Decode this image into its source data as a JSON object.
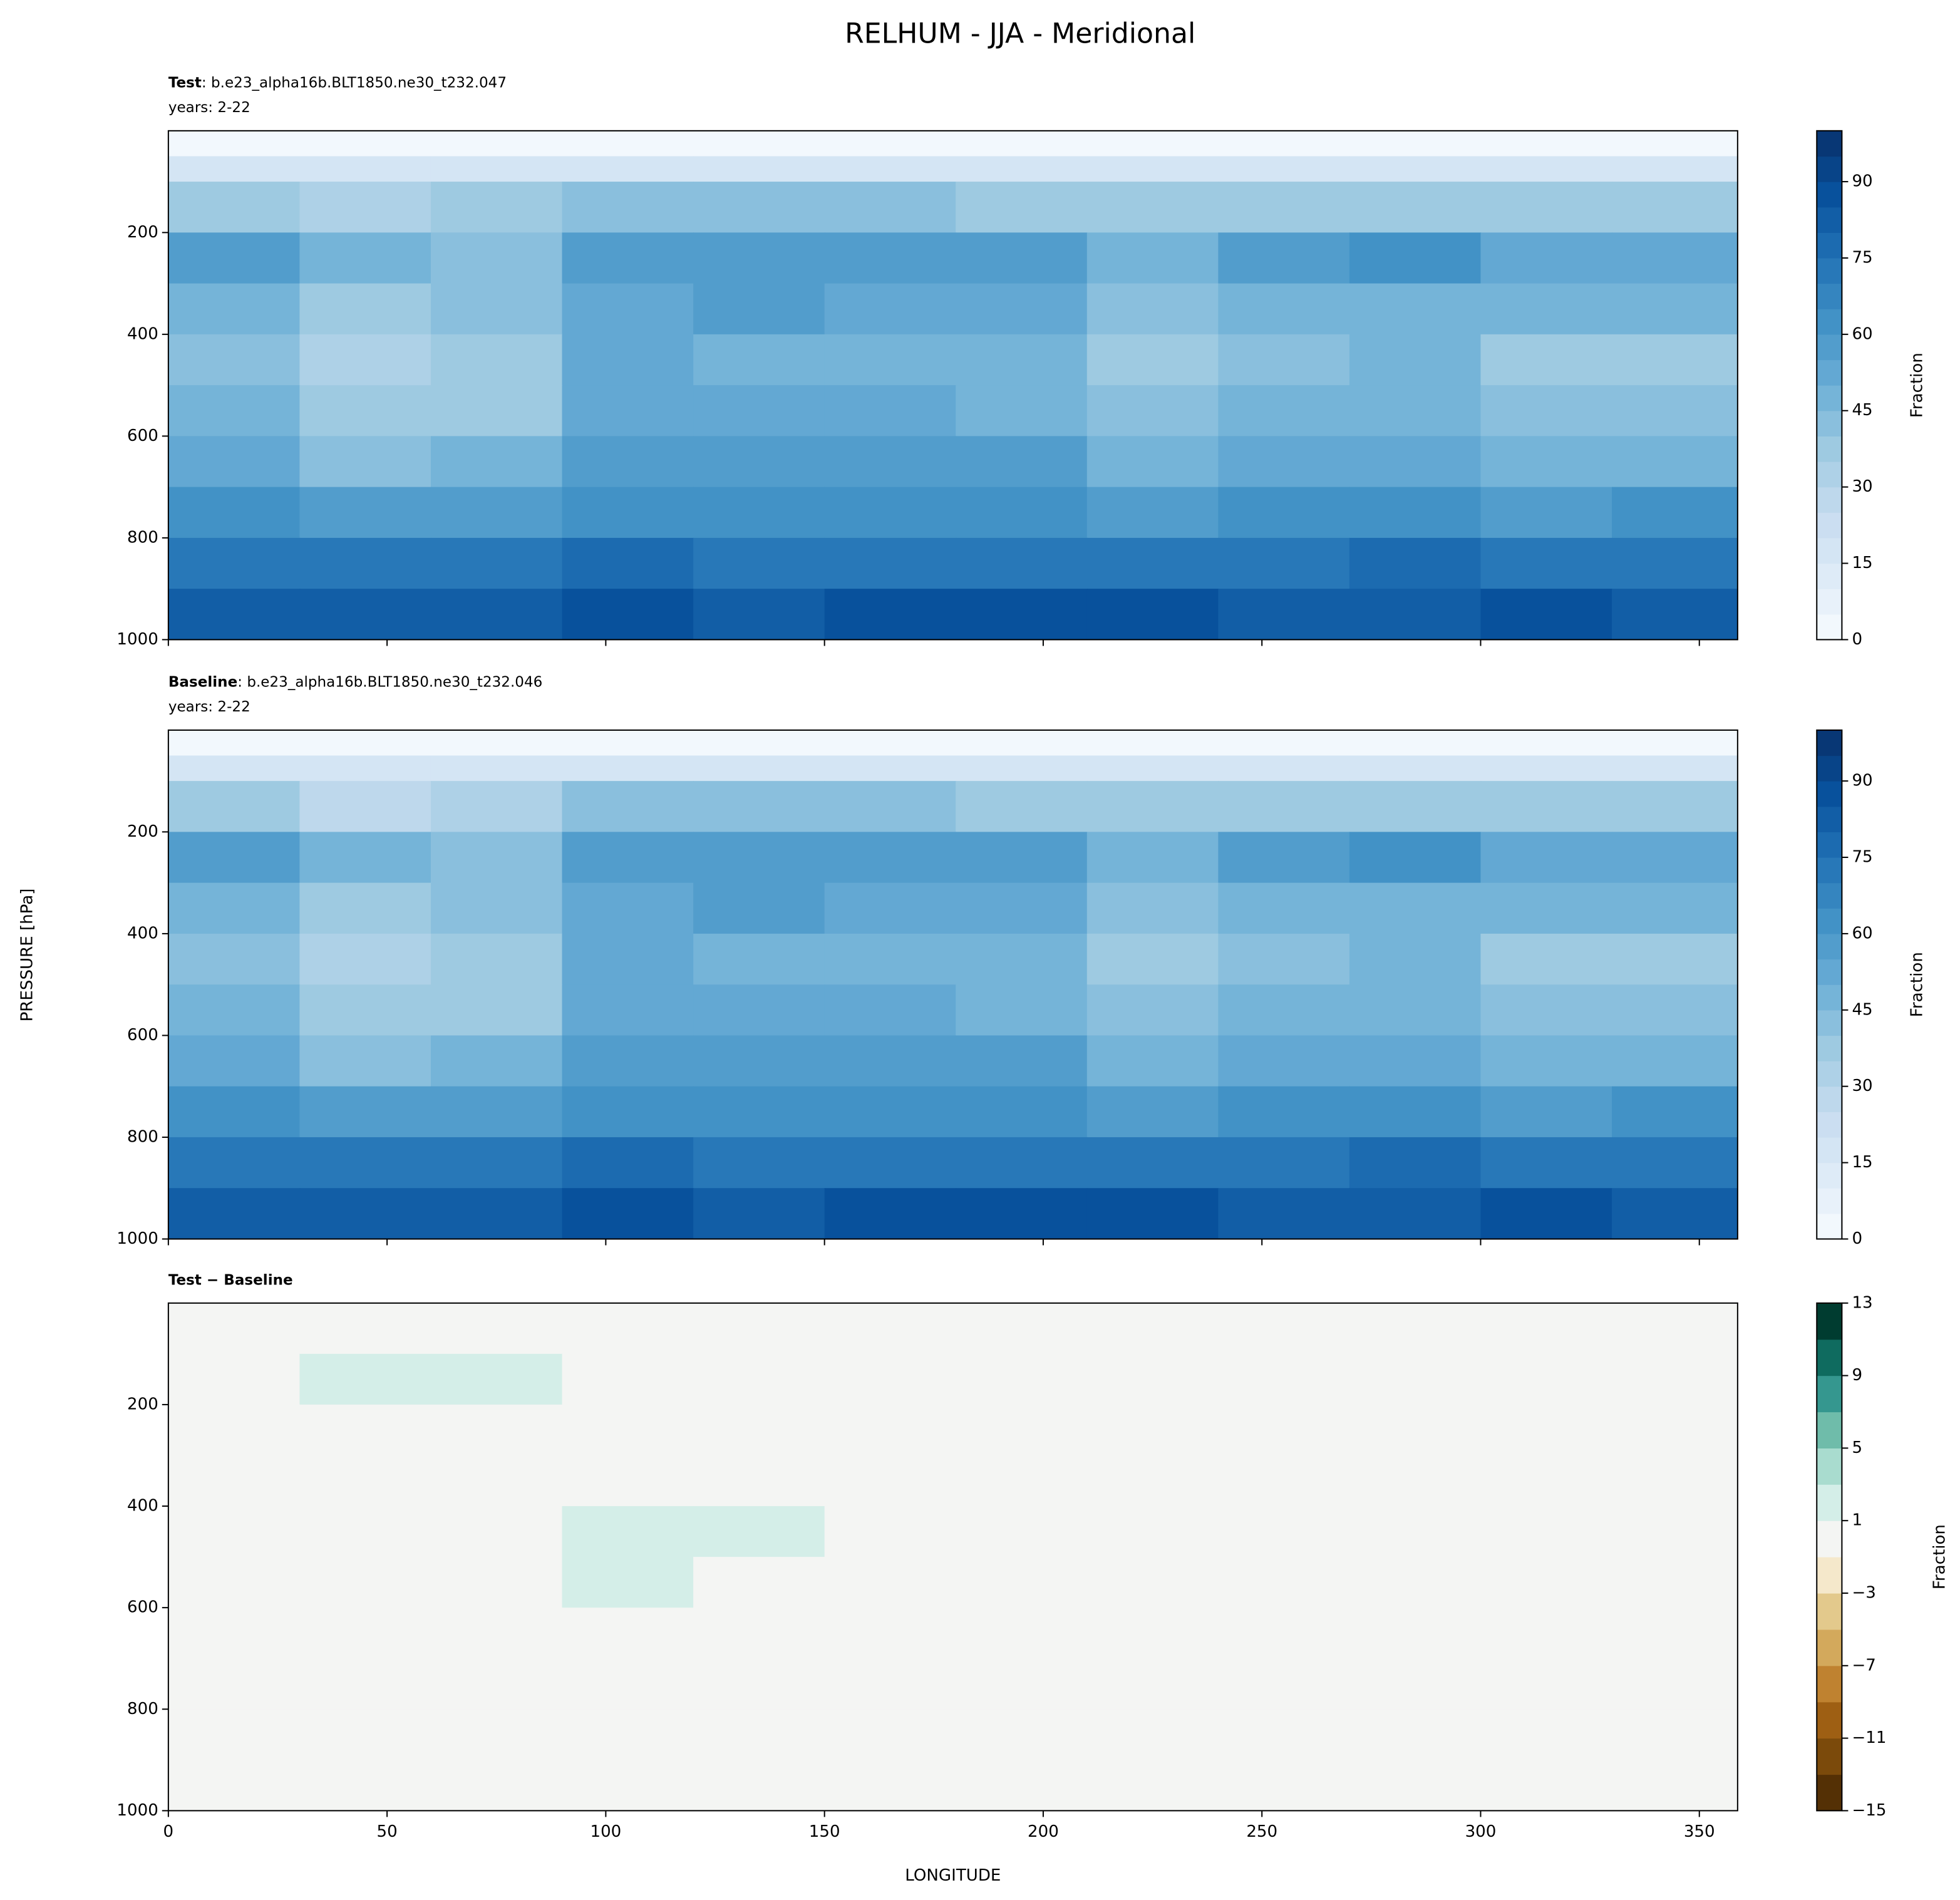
{
  "title": "RELHUM - JJA - Meridional",
  "ylabel": "PRESSURE [hPa]",
  "chart_data": [
    {
      "type": "contourf",
      "title_bold": "Test",
      "title": ": b.e23_alpha16b.BLT1850.ne30_t232.047",
      "subtitle": "years: 2-22",
      "x_edges": [
        0,
        30,
        60,
        90,
        120,
        150,
        180,
        210,
        240,
        270,
        300,
        330,
        360
      ],
      "y_edges": [
        0,
        50,
        100,
        200,
        300,
        400,
        500,
        600,
        700,
        800,
        900,
        1000
      ],
      "z": [
        [
          3,
          3,
          3,
          3,
          3,
          3,
          3,
          3,
          3,
          3,
          3,
          3
        ],
        [
          15,
          15,
          15,
          15,
          15,
          15,
          15,
          15,
          15,
          15,
          15,
          15
        ],
        [
          35,
          30,
          35,
          42,
          42,
          40,
          38,
          35,
          35,
          38,
          35,
          35
        ],
        [
          55,
          45,
          42,
          55,
          58,
          58,
          55,
          45,
          55,
          60,
          50,
          50
        ],
        [
          45,
          35,
          40,
          52,
          55,
          52,
          50,
          42,
          45,
          48,
          45,
          45
        ],
        [
          40,
          30,
          35,
          52,
          48,
          48,
          45,
          35,
          40,
          45,
          35,
          38
        ],
        [
          45,
          35,
          38,
          52,
          50,
          52,
          48,
          40,
          45,
          48,
          40,
          42
        ],
        [
          50,
          42,
          45,
          55,
          55,
          55,
          55,
          48,
          50,
          50,
          45,
          48
        ],
        [
          62,
          58,
          58,
          62,
          62,
          60,
          60,
          58,
          60,
          62,
          58,
          60
        ],
        [
          72,
          70,
          72,
          75,
          72,
          72,
          72,
          70,
          72,
          75,
          72,
          72
        ],
        [
          82,
          82,
          80,
          85,
          82,
          88,
          88,
          85,
          82,
          80,
          85,
          82
        ]
      ],
      "xlim": [
        0,
        358.75
      ],
      "ylim": [
        1000,
        0
      ],
      "yticks": [
        200,
        400,
        600,
        800,
        1000
      ],
      "xticks": [
        0,
        50,
        100,
        150,
        200,
        250,
        300,
        350
      ],
      "colorbar": {
        "label": "Fraction",
        "lim": [
          0,
          100
        ],
        "ticks": [
          0,
          15,
          30,
          45,
          60,
          75,
          90
        ],
        "levels": [
          0,
          5,
          10,
          15,
          20,
          25,
          30,
          35,
          40,
          45,
          50,
          55,
          60,
          65,
          70,
          75,
          80,
          85,
          90,
          95,
          100
        ],
        "cmap": [
          "#f7fbff",
          "#deebf7",
          "#c6dbef",
          "#9ecae1",
          "#6baed6",
          "#4292c6",
          "#2171b5",
          "#08519c",
          "#08306b"
        ]
      }
    },
    {
      "type": "contourf",
      "title_bold": "Baseline",
      "title": ": b.e23_alpha16b.BLT1850.ne30_t232.046",
      "subtitle": "years: 2-22",
      "x_edges": [
        0,
        30,
        60,
        90,
        120,
        150,
        180,
        210,
        240,
        270,
        300,
        330,
        360
      ],
      "y_edges": [
        0,
        50,
        100,
        200,
        300,
        400,
        500,
        600,
        700,
        800,
        900,
        1000
      ],
      "z": [
        [
          3,
          3,
          3,
          3,
          3,
          3,
          3,
          3,
          3,
          3,
          3,
          3
        ],
        [
          15,
          15,
          15,
          15,
          15,
          15,
          15,
          15,
          15,
          15,
          15,
          15
        ],
        [
          35,
          28,
          34,
          42,
          42,
          40,
          38,
          35,
          35,
          38,
          35,
          35
        ],
        [
          55,
          45,
          42,
          55,
          58,
          58,
          55,
          45,
          55,
          60,
          50,
          50
        ],
        [
          45,
          35,
          40,
          52,
          55,
          53,
          50,
          43,
          45,
          48,
          45,
          45
        ],
        [
          40,
          30,
          35,
          50,
          47,
          49,
          45,
          35,
          40,
          45,
          35,
          38
        ],
        [
          45,
          35,
          38,
          50,
          50,
          52,
          48,
          40,
          45,
          48,
          40,
          42
        ],
        [
          50,
          42,
          45,
          55,
          55,
          55,
          55,
          48,
          50,
          50,
          45,
          48
        ],
        [
          62,
          58,
          58,
          62,
          62,
          60,
          60,
          58,
          60,
          62,
          58,
          60
        ],
        [
          72,
          70,
          72,
          75,
          72,
          72,
          72,
          70,
          72,
          75,
          72,
          72
        ],
        [
          82,
          82,
          80,
          85,
          82,
          88,
          88,
          85,
          82,
          80,
          85,
          82
        ]
      ],
      "xlim": [
        0,
        358.75
      ],
      "ylim": [
        1000,
        0
      ],
      "yticks": [
        200,
        400,
        600,
        800,
        1000
      ],
      "xticks": [
        0,
        50,
        100,
        150,
        200,
        250,
        300,
        350
      ],
      "colorbar": {
        "label": "Fraction",
        "lim": [
          0,
          100
        ],
        "ticks": [
          0,
          15,
          30,
          45,
          60,
          75,
          90
        ],
        "levels": [
          0,
          5,
          10,
          15,
          20,
          25,
          30,
          35,
          40,
          45,
          50,
          55,
          60,
          65,
          70,
          75,
          80,
          85,
          90,
          95,
          100
        ],
        "cmap": [
          "#f7fbff",
          "#deebf7",
          "#c6dbef",
          "#9ecae1",
          "#6baed6",
          "#4292c6",
          "#2171b5",
          "#08519c",
          "#08306b"
        ]
      }
    },
    {
      "type": "contourf",
      "title_bold": "Test − Baseline",
      "x_edges": [
        0,
        30,
        60,
        90,
        120,
        150,
        180,
        210,
        240,
        270,
        300,
        330,
        360
      ],
      "y_edges": [
        0,
        50,
        100,
        200,
        300,
        400,
        500,
        600,
        700,
        800,
        900,
        1000
      ],
      "z": [
        [
          0,
          0,
          0,
          0,
          0,
          0,
          0,
          0,
          0,
          0,
          0,
          0
        ],
        [
          0,
          0,
          0,
          0,
          0,
          0,
          0,
          0,
          0,
          0,
          0,
          0
        ],
        [
          0,
          2,
          1,
          0,
          0,
          0,
          0,
          0,
          0,
          0,
          0,
          0
        ],
        [
          0,
          0,
          0,
          0,
          0,
          0,
          0,
          0,
          0,
          0,
          0,
          0
        ],
        [
          0,
          0,
          0,
          0,
          0,
          -1,
          0,
          -1,
          0,
          0,
          0,
          0
        ],
        [
          0,
          0,
          0,
          2,
          1,
          -1,
          0,
          0,
          0,
          0,
          0,
          0
        ],
        [
          0,
          0,
          0,
          2,
          0,
          0,
          0,
          0,
          0,
          0,
          0,
          0
        ],
        [
          0,
          0,
          0,
          0,
          0,
          0,
          0,
          0,
          0,
          0,
          0,
          0
        ],
        [
          0,
          0,
          0,
          0,
          0,
          0,
          0,
          0,
          0,
          0,
          0,
          0
        ],
        [
          0,
          0,
          0,
          0,
          0,
          0,
          0,
          0,
          0,
          0,
          0,
          0
        ],
        [
          0,
          0,
          0,
          0,
          0,
          0,
          0,
          0,
          0,
          0,
          0,
          0
        ]
      ],
      "xlim": [
        0,
        358.75
      ],
      "ylim": [
        1000,
        0
      ],
      "yticks": [
        200,
        400,
        600,
        800,
        1000
      ],
      "xticks": [
        0,
        50,
        100,
        150,
        200,
        250,
        300,
        350
      ],
      "xlabel": "LONGITUDE",
      "colorbar": {
        "label": "Fraction",
        "lim": [
          -15,
          13
        ],
        "ticks": [
          {
            "value": -15,
            "label": "−15"
          },
          {
            "value": -11,
            "label": "−11"
          },
          {
            "value": -7,
            "label": "−7"
          },
          {
            "value": -3,
            "label": "−3"
          },
          1,
          5,
          9,
          13
        ],
        "levels": [
          -15,
          -13,
          -11,
          -9,
          -7,
          -5,
          -3,
          -1,
          1,
          3,
          5,
          7,
          9,
          11,
          13
        ],
        "band_colors": [
          "#543005",
          "#7b4a0b",
          "#9e5f13",
          "#bf8230",
          "#d3a95c",
          "#e3c98c",
          "#f5e8cb",
          "#f4f5f3",
          "#d4eee8",
          "#a9dccf",
          "#6fbcaa",
          "#35978f",
          "#0f6b5f",
          "#003c30"
        ]
      }
    }
  ]
}
